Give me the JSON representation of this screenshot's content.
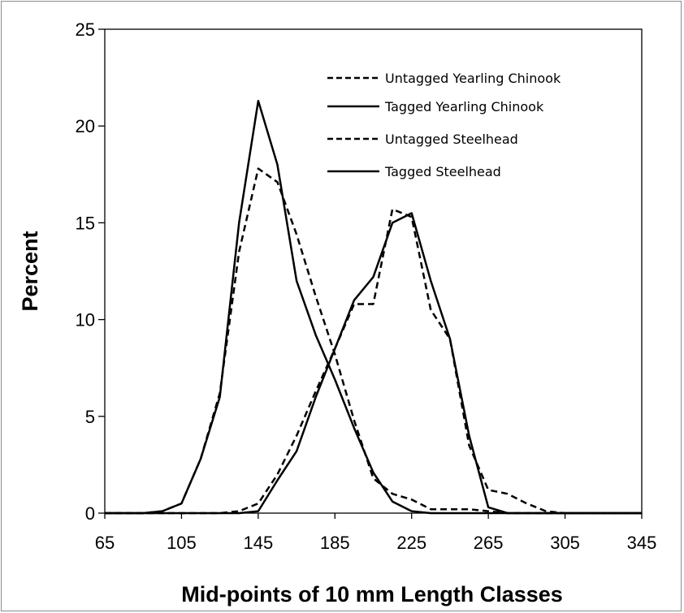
{
  "chart_data": {
    "type": "line",
    "title": "",
    "xlabel": "Mid-points of 10 mm Length Classes",
    "ylabel": "Percent",
    "x": [
      65,
      75,
      85,
      95,
      105,
      115,
      125,
      135,
      145,
      155,
      165,
      175,
      185,
      195,
      205,
      215,
      225,
      235,
      245,
      255,
      265,
      275,
      285,
      295,
      305,
      315,
      325,
      335,
      345
    ],
    "xticks": [
      65,
      105,
      145,
      185,
      225,
      265,
      305,
      345
    ],
    "yticks": [
      0,
      5,
      10,
      15,
      20,
      25
    ],
    "xlim": [
      65,
      345
    ],
    "ylim": [
      0,
      25
    ],
    "grid": false,
    "legend_position": "top-right",
    "series": [
      {
        "name": "Untagged Yearling Chinook",
        "dash": "dashed",
        "values": [
          0,
          0,
          0,
          0.1,
          0.5,
          2.8,
          6.2,
          13.5,
          17.8,
          17.1,
          14.4,
          11.2,
          8.2,
          4.8,
          1.8,
          1.0,
          0.7,
          0.2,
          0.2,
          0.2,
          0.1,
          0,
          0,
          0,
          0,
          0,
          0,
          0,
          0
        ]
      },
      {
        "name": "Tagged Yearling Chinook",
        "dash": "solid",
        "values": [
          0,
          0,
          0,
          0.1,
          0.5,
          2.8,
          6.0,
          15.0,
          21.3,
          18.0,
          12.0,
          9.2,
          6.9,
          4.4,
          2.1,
          0.6,
          0.1,
          0,
          0,
          0,
          0,
          0,
          0,
          0,
          0,
          0,
          0,
          0,
          0
        ]
      },
      {
        "name": "Untagged Steelhead",
        "dash": "dashed",
        "values": [
          0,
          0,
          0,
          0,
          0,
          0,
          0,
          0.1,
          0.5,
          2.0,
          4.0,
          6.3,
          8.5,
          10.8,
          10.8,
          15.7,
          15.3,
          10.5,
          9.0,
          3.5,
          1.2,
          1.0,
          0.5,
          0.1,
          0,
          0,
          0,
          0,
          0
        ]
      },
      {
        "name": "Tagged Steelhead",
        "dash": "solid",
        "values": [
          0,
          0,
          0,
          0,
          0,
          0,
          0,
          0,
          0.1,
          1.7,
          3.2,
          6.0,
          8.5,
          11.0,
          12.2,
          15.0,
          15.5,
          12.0,
          9.0,
          4.0,
          0.3,
          0,
          0,
          0,
          0,
          0,
          0,
          0,
          0
        ]
      }
    ]
  }
}
